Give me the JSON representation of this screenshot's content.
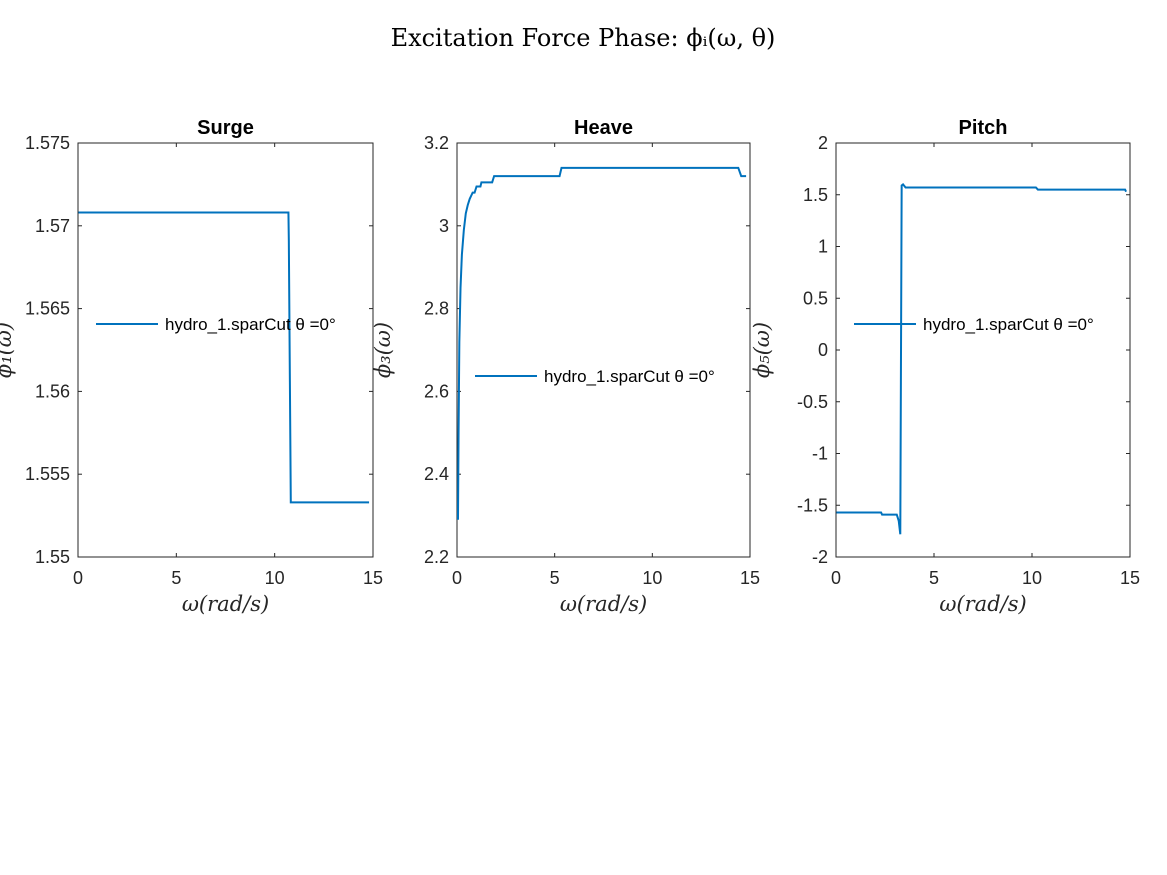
{
  "suptitle": "Excitation Force Phase: ϕᵢ(ω, θ)",
  "chart_data": [
    {
      "type": "line",
      "title": "Surge",
      "xlabel": "ω(rad/s)",
      "ylabel": "ϕ₁(ω)",
      "xlim": [
        0,
        15
      ],
      "ylim": [
        1.55,
        1.575
      ],
      "xticks": [
        "0",
        "5",
        "10",
        "15"
      ],
      "yticks": [
        "1.55",
        "1.555",
        "1.56",
        "1.565",
        "1.57",
        "1.575"
      ],
      "legend_position": "center-left",
      "series": [
        {
          "name": "hydro_1.sparCut θ =0°",
          "color": "#0072BD",
          "points": [
            [
              0.02,
              1.5708
            ],
            [
              10.7,
              1.5708
            ],
            [
              10.72,
              1.5691
            ],
            [
              10.82,
              1.5533
            ],
            [
              14.8,
              1.5533
            ]
          ]
        }
      ]
    },
    {
      "type": "line",
      "title": "Heave",
      "xlabel": "ω(rad/s)",
      "ylabel": "ϕ₃(ω)",
      "xlim": [
        0,
        15
      ],
      "ylim": [
        2.2,
        3.2
      ],
      "xticks": [
        "0",
        "5",
        "10",
        "15"
      ],
      "yticks": [
        "2.2",
        "2.4",
        "2.6",
        "2.8",
        "3",
        "3.2"
      ],
      "legend_position": "center",
      "series": [
        {
          "name": "hydro_1.sparCut θ =0°",
          "color": "#0072BD",
          "points": [
            [
              0.05,
              2.29
            ],
            [
              0.08,
              2.5
            ],
            [
              0.12,
              2.72
            ],
            [
              0.18,
              2.85
            ],
            [
              0.25,
              2.93
            ],
            [
              0.35,
              2.99
            ],
            [
              0.45,
              3.03
            ],
            [
              0.55,
              3.05
            ],
            [
              0.65,
              3.065
            ],
            [
              0.75,
              3.075
            ],
            [
              0.8,
              3.08
            ],
            [
              0.9,
              3.08
            ],
            [
              1.0,
              3.095
            ],
            [
              1.2,
              3.095
            ],
            [
              1.25,
              3.105
            ],
            [
              1.8,
              3.105
            ],
            [
              1.9,
              3.12
            ],
            [
              5.25,
              3.12
            ],
            [
              5.35,
              3.14
            ],
            [
              14.4,
              3.14
            ],
            [
              14.55,
              3.12
            ],
            [
              14.8,
              3.12
            ]
          ]
        }
      ]
    },
    {
      "type": "line",
      "title": "Pitch",
      "xlabel": "ω(rad/s)",
      "ylabel": "ϕ₅(ω)",
      "xlim": [
        0,
        15
      ],
      "ylim": [
        -2,
        2
      ],
      "xticks": [
        "0",
        "5",
        "10",
        "15"
      ],
      "yticks": [
        "-2",
        "-1.5",
        "-1",
        "-0.5",
        "0",
        "0.5",
        "1",
        "1.5",
        "2"
      ],
      "legend_position": "center-right",
      "series": [
        {
          "name": "hydro_1.sparCut θ =0°",
          "color": "#0072BD",
          "points": [
            [
              0.02,
              -1.57
            ],
            [
              2.3,
              -1.57
            ],
            [
              2.35,
              -1.59
            ],
            [
              3.1,
              -1.59
            ],
            [
              3.2,
              -1.65
            ],
            [
              3.28,
              -1.78
            ],
            [
              3.35,
              1.59
            ],
            [
              3.42,
              1.6
            ],
            [
              3.55,
              1.57
            ],
            [
              10.2,
              1.57
            ],
            [
              10.3,
              1.55
            ],
            [
              14.75,
              1.55
            ],
            [
              14.8,
              1.53
            ]
          ]
        }
      ]
    }
  ]
}
